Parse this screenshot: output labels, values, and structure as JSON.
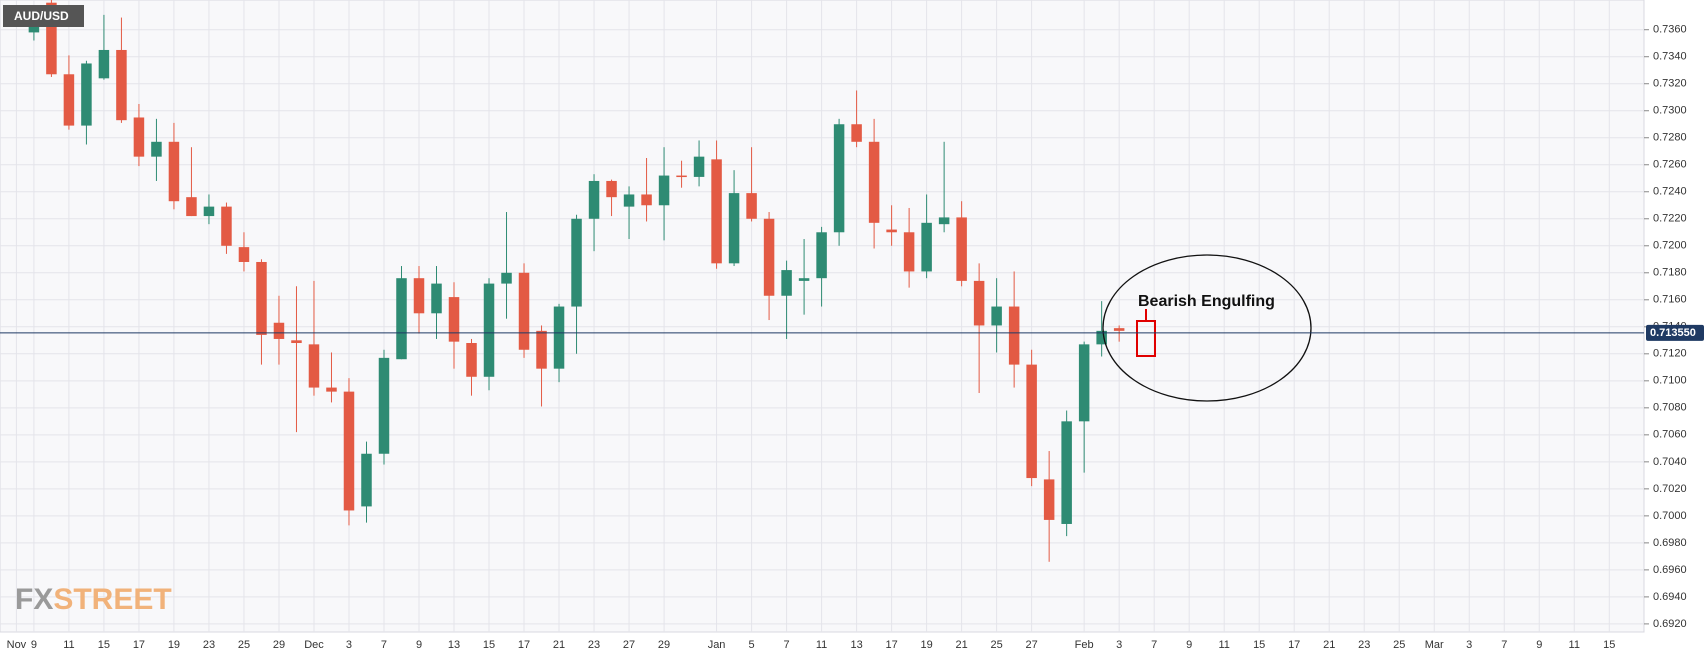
{
  "chart_data": {
    "type": "candlestick",
    "title": "AUD/USD",
    "annotation": "Bearish Engulfing",
    "logo": {
      "fx": "FX",
      "street": "STREET"
    },
    "up_color": "#2e8b73",
    "down_color": "#e35a44",
    "grid": true,
    "last_price": {
      "value": 0.71355,
      "label": "0.713550"
    },
    "categories": [
      "Nov",
      "9",
      null,
      "11",
      null,
      "15",
      null,
      "17",
      null,
      "19",
      null,
      "23",
      null,
      "25",
      null,
      "29",
      null,
      "Dec",
      null,
      "3",
      null,
      "7",
      null,
      "9",
      null,
      "13",
      null,
      "15",
      null,
      "17",
      null,
      "21",
      null,
      "23",
      null,
      "27",
      null,
      "29",
      null,
      null,
      "Jan",
      null,
      "5",
      null,
      "7",
      null,
      "11",
      null,
      "13",
      null,
      "17",
      null,
      "19",
      null,
      "21",
      null,
      "25",
      null,
      "27",
      null,
      null,
      "Feb",
      null,
      "3",
      null,
      "7",
      null,
      "9",
      null,
      "11",
      null,
      "15",
      null,
      "17",
      null,
      "21",
      null,
      "23",
      null,
      "25",
      null,
      "Mar",
      null,
      "3",
      null,
      "7",
      null,
      "9",
      null,
      "11",
      null,
      "15"
    ],
    "open": [
      null,
      0.7358,
      0.738,
      0.7327,
      0.7289,
      0.7324,
      0.7345,
      0.7295,
      0.7266,
      0.7277,
      0.7236,
      0.7222,
      0.7229,
      0.7199,
      0.7188,
      0.7143,
      0.713,
      0.7127,
      0.7095,
      0.7092,
      0.7007,
      0.7046,
      0.7116,
      0.7176,
      0.715,
      0.7162,
      0.7128,
      0.7103,
      0.7172,
      0.718,
      0.7137,
      0.7109,
      0.7155,
      0.722,
      0.7248,
      0.7229,
      0.7238,
      0.723,
      0.7252,
      0.7251,
      0.7264,
      0.7187,
      0.7239,
      0.722,
      0.7163,
      0.7174,
      0.7176,
      0.721,
      0.729,
      0.7277,
      0.7212,
      0.721,
      0.7181,
      0.7216,
      0.7221,
      0.7174,
      0.7141,
      0.7155,
      0.7112,
      0.7027,
      0.6994,
      0.707,
      0.7127,
      0.7139,
      null,
      null,
      null,
      null,
      null,
      null,
      null,
      null,
      null,
      null,
      null,
      null,
      null,
      null,
      null,
      null,
      null,
      null,
      null,
      null,
      null,
      null,
      null,
      null,
      null,
      null,
      null,
      null
    ],
    "high": [
      null,
      0.7375,
      0.7385,
      0.7341,
      0.7337,
      0.7371,
      0.7369,
      0.7305,
      0.7294,
      0.7291,
      0.7273,
      0.7238,
      0.7232,
      0.721,
      0.719,
      0.7163,
      0.717,
      0.7174,
      0.7121,
      0.7102,
      0.7055,
      0.7123,
      0.7185,
      0.7185,
      0.7185,
      0.7173,
      0.7131,
      0.7176,
      0.7225,
      0.7187,
      0.7141,
      0.7157,
      0.7223,
      0.7253,
      0.7249,
      0.7244,
      0.7265,
      0.7273,
      0.7263,
      0.7278,
      0.7278,
      0.7256,
      0.7273,
      0.7225,
      0.7189,
      0.7205,
      0.7214,
      0.7294,
      0.7315,
      0.7294,
      0.723,
      0.7228,
      0.7238,
      0.7277,
      0.7233,
      0.7187,
      0.7176,
      0.7181,
      0.7123,
      0.7048,
      0.7078,
      0.7129,
      0.7159,
      0.7141,
      null,
      null,
      null,
      null,
      null,
      null,
      null,
      null,
      null,
      null,
      null,
      null,
      null,
      null,
      null,
      null,
      null,
      null,
      null,
      null,
      null,
      null,
      null,
      null,
      null,
      null,
      null,
      null
    ],
    "low": [
      null,
      0.7352,
      0.7325,
      0.7286,
      0.7275,
      0.7323,
      0.7291,
      0.7259,
      0.7248,
      0.7227,
      0.7222,
      0.7216,
      0.7194,
      0.7181,
      0.7112,
      0.7112,
      0.7062,
      0.7089,
      0.7084,
      0.6993,
      0.6995,
      0.7038,
      0.7116,
      0.7135,
      0.7131,
      0.7109,
      0.7089,
      0.7093,
      0.7146,
      0.7117,
      0.7081,
      0.7099,
      0.712,
      0.7196,
      0.7222,
      0.7205,
      0.7218,
      0.7204,
      0.7243,
      0.7244,
      0.7183,
      0.7185,
      0.7218,
      0.7145,
      0.7131,
      0.7149,
      0.7155,
      0.72,
      0.7273,
      0.7198,
      0.72,
      0.7169,
      0.7176,
      0.721,
      0.717,
      0.7091,
      0.7121,
      0.7095,
      0.7022,
      0.6966,
      0.6985,
      0.7032,
      0.7118,
      0.7129,
      null,
      null,
      null,
      null,
      null,
      null,
      null,
      null,
      null,
      null,
      null,
      null,
      null,
      null,
      null,
      null,
      null,
      null,
      null,
      null,
      null,
      null,
      null,
      null,
      null,
      null,
      null,
      null
    ],
    "close": [
      null,
      0.7368,
      0.7327,
      0.7289,
      0.7335,
      0.7345,
      0.7293,
      0.7266,
      0.7277,
      0.7233,
      0.7222,
      0.7229,
      0.72,
      0.7188,
      0.7134,
      0.7131,
      0.7128,
      0.7095,
      0.7092,
      0.7004,
      0.7046,
      0.7117,
      0.7176,
      0.715,
      0.7172,
      0.7129,
      0.7103,
      0.7172,
      0.718,
      0.7123,
      0.7109,
      0.7155,
      0.722,
      0.7248,
      0.7236,
      0.7238,
      0.723,
      0.7252,
      0.7251,
      0.7266,
      0.7187,
      0.7239,
      0.722,
      0.7163,
      0.7182,
      0.7176,
      0.721,
      0.729,
      0.7277,
      0.7217,
      0.721,
      0.7181,
      0.7217,
      0.7221,
      0.7174,
      0.7141,
      0.7155,
      0.7112,
      0.7028,
      0.6997,
      0.707,
      0.7127,
      0.7137,
      0.7137,
      null,
      null,
      null,
      null,
      null,
      null,
      null,
      null,
      null,
      null,
      null,
      null,
      null,
      null,
      null,
      null,
      null,
      null,
      null,
      null,
      null,
      null,
      null,
      null,
      null,
      null,
      null,
      null
    ],
    "ylim": [
      0.6914,
      0.7382
    ],
    "yticks": [
      {
        "value": 0.736,
        "label": "0.7360"
      },
      {
        "value": 0.734,
        "label": "0.7340"
      },
      {
        "value": 0.732,
        "label": "0.7320"
      },
      {
        "value": 0.73,
        "label": "0.7300"
      },
      {
        "value": 0.728,
        "label": "0.7280"
      },
      {
        "value": 0.726,
        "label": "0.7260"
      },
      {
        "value": 0.724,
        "label": "0.7240"
      },
      {
        "value": 0.722,
        "label": "0.7220"
      },
      {
        "value": 0.72,
        "label": "0.7200"
      },
      {
        "value": 0.718,
        "label": "0.7180"
      },
      {
        "value": 0.716,
        "label": "0.7160"
      },
      {
        "value": 0.714,
        "label": "0.7140"
      },
      {
        "value": 0.712,
        "label": "0.7120"
      },
      {
        "value": 0.71,
        "label": "0.7100"
      },
      {
        "value": 0.708,
        "label": "0.7080"
      },
      {
        "value": 0.706,
        "label": "0.7060"
      },
      {
        "value": 0.704,
        "label": "0.7040"
      },
      {
        "value": 0.702,
        "label": "0.7020"
      },
      {
        "value": 0.7,
        "label": "0.7000"
      },
      {
        "value": 0.698,
        "label": "0.6980"
      },
      {
        "value": 0.696,
        "label": "0.6960"
      },
      {
        "value": 0.694,
        "label": "0.6940"
      },
      {
        "value": 0.692,
        "label": "0.6920"
      }
    ]
  }
}
